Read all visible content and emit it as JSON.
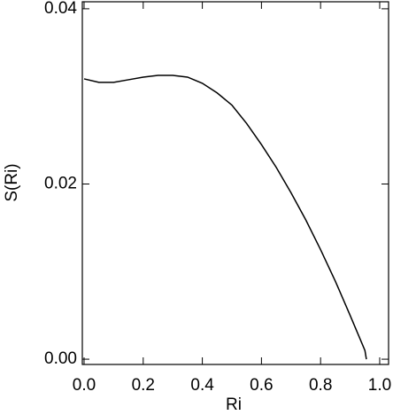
{
  "chart_data": {
    "type": "line",
    "x_label": "Ri",
    "y_label": "S(Ri)",
    "x": [
      0.0,
      0.05,
      0.1,
      0.15,
      0.2,
      0.25,
      0.3,
      0.35,
      0.4,
      0.45,
      0.5,
      0.55,
      0.6,
      0.65,
      0.7,
      0.75,
      0.8,
      0.85,
      0.9,
      0.95,
      0.955
    ],
    "series": [
      {
        "color": "#000000",
        "values": [
          0.032,
          0.0316,
          0.0316,
          0.0319,
          0.0322,
          0.0324,
          0.0324,
          0.0322,
          0.0315,
          0.0304,
          0.029,
          0.0269,
          0.0245,
          0.0219,
          0.019,
          0.0159,
          0.0125,
          0.0089,
          0.005,
          0.001,
          0.0
        ]
      }
    ],
    "xlim": [
      -0.006,
      1.03
    ],
    "ylim": [
      -0.0006,
      0.0408
    ],
    "xticks": [
      {
        "value": 0,
        "label": "0.0"
      },
      0.2,
      0.4,
      0.6,
      0.8,
      {
        "value": 1,
        "label": "1.0"
      }
    ],
    "yticks": [
      {
        "value": 0,
        "label": "0.00"
      },
      0.02,
      0.04
    ]
  }
}
